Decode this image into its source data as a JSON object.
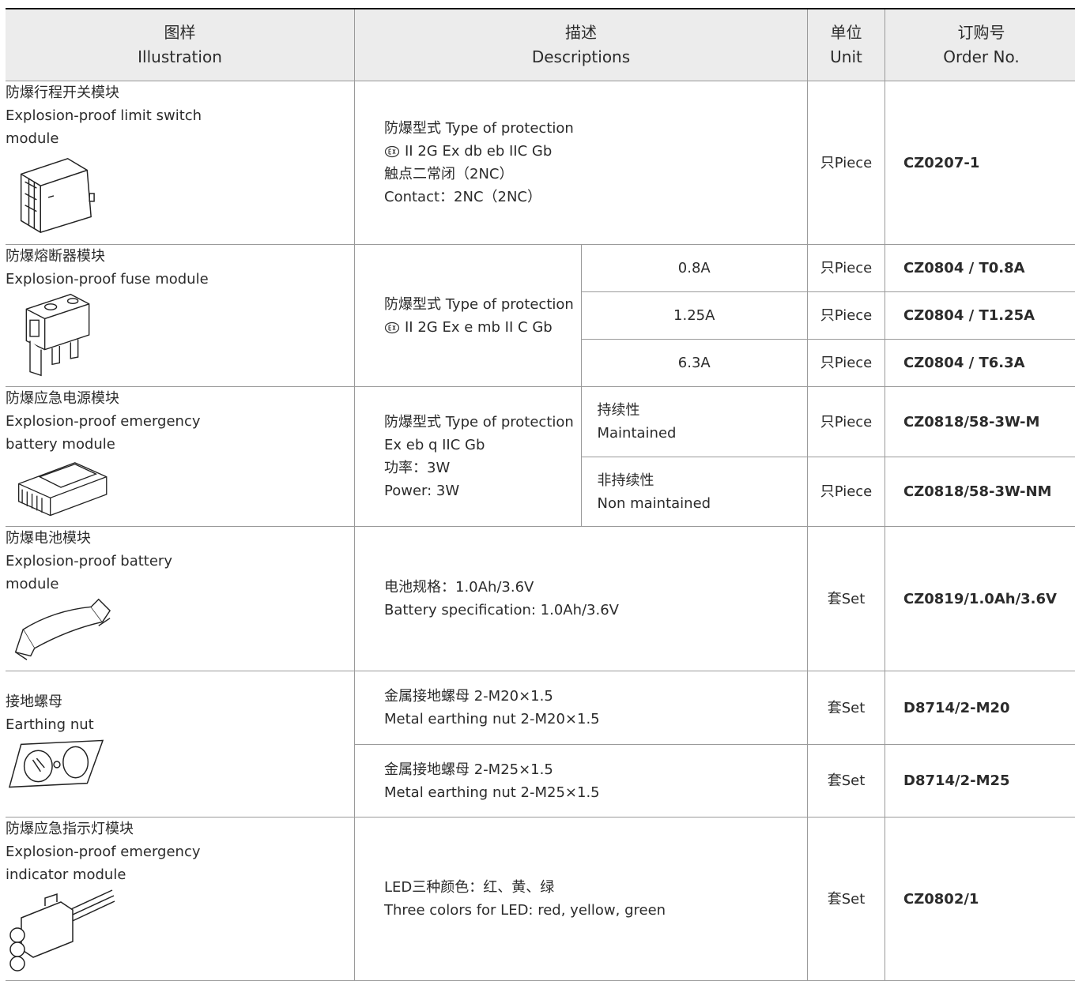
{
  "header": {
    "columns": [
      [
        "图样",
        "Illustration"
      ],
      [
        "描述",
        "Descriptions"
      ],
      [
        "单位",
        "Unit"
      ],
      [
        "订购号",
        "Order No."
      ]
    ]
  },
  "products": [
    {
      "name": [
        "防爆行程开关模块",
        "Explosion-proof limit switch",
        "module"
      ],
      "options": [
        {
          "description": [
            "防爆型式 Type of protection",
            {
              "ex_symbol": true,
              "text": "II 2G Ex db eb IIC Gb"
            },
            "触点二常闭（2NC）",
            "Contact：2NC（2NC）"
          ],
          "unit": "只Piece",
          "order_no": "CZ0207-1"
        }
      ]
    },
    {
      "name": [
        "防爆熔断器模块",
        "Explosion-proof fuse module"
      ],
      "description": [
        "防爆型式 Type of protection",
        {
          "ex_symbol": true,
          "text": "II 2G Ex e mb II C Gb"
        }
      ],
      "options": [
        {
          "variant": [
            "0.8A"
          ],
          "unit": "只Piece",
          "order_no": "CZ0804 / T0.8A"
        },
        {
          "variant": [
            "1.25A"
          ],
          "unit": "只Piece",
          "order_no": "CZ0804 / T1.25A"
        },
        {
          "variant": [
            "6.3A"
          ],
          "unit": "只Piece",
          "order_no": "CZ0804 / T6.3A"
        }
      ]
    },
    {
      "name": [
        "防爆应急电源模块",
        "Explosion-proof emergency",
        "battery module"
      ],
      "description": [
        "防爆型式 Type of protection",
        "Ex eb q IIC Gb",
        "功率：3W",
        "Power: 3W"
      ],
      "options": [
        {
          "variant": [
            "持续性",
            "Maintained"
          ],
          "unit": "只Piece",
          "order_no": "CZ0818/58-3W-M"
        },
        {
          "variant": [
            "非持续性",
            "Non maintained"
          ],
          "unit": "只Piece",
          "order_no": "CZ0818/58-3W-NM"
        }
      ]
    },
    {
      "name": [
        "防爆电池模块",
        "Explosion-proof battery",
        "module"
      ],
      "options": [
        {
          "description": [
            "电池规格：1.0Ah/3.6V",
            "Battery specification: 1.0Ah/3.6V"
          ],
          "unit": "套Set",
          "order_no": "CZ0819/1.0Ah/3.6V"
        }
      ]
    },
    {
      "name": [
        "接地螺母",
        "Earthing nut"
      ],
      "options": [
        {
          "description": [
            "金属接地螺母 2-M20×1.5",
            "Metal earthing nut  2-M20×1.5"
          ],
          "unit": "套Set",
          "order_no": "D8714/2-M20"
        },
        {
          "description": [
            "金属接地螺母 2-M25×1.5",
            "Metal earthing nut  2-M25×1.5"
          ],
          "unit": "套Set",
          "order_no": "D8714/2-M25"
        }
      ]
    },
    {
      "name": [
        "防爆应急指示灯模块",
        "Explosion-proof emergency",
        "indicator module"
      ],
      "options": [
        {
          "description": [
            "LED三种颜色：红、黄、绿",
            "Three colors for LED: red, yellow,  green"
          ],
          "unit": "套Set",
          "order_no": "CZ0802/1"
        }
      ]
    }
  ]
}
